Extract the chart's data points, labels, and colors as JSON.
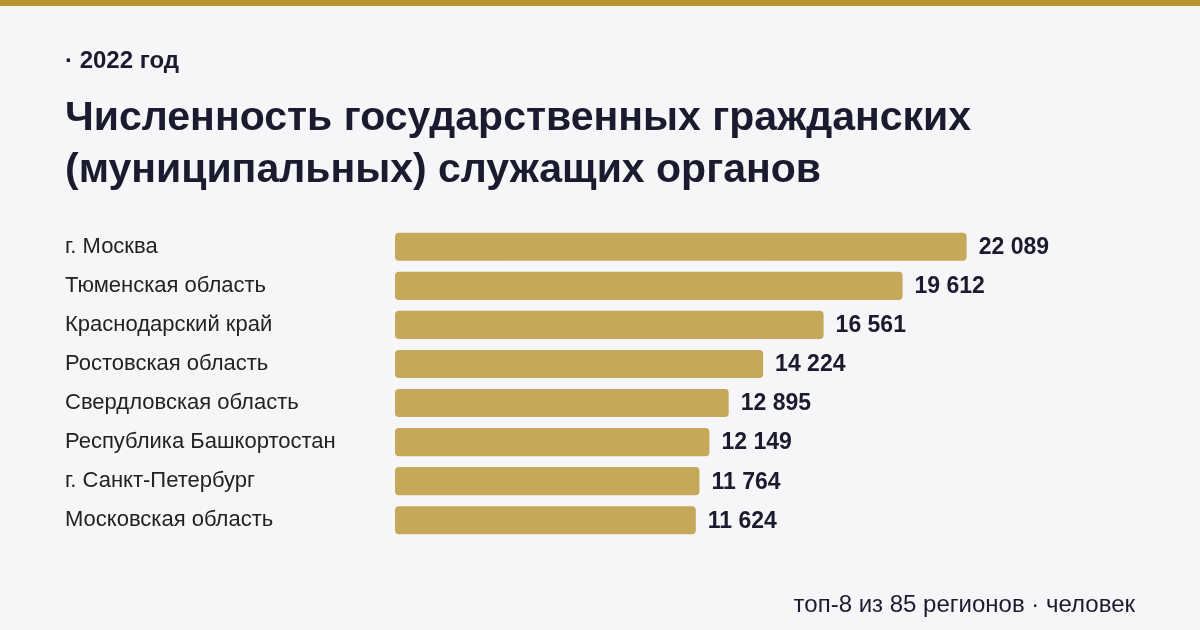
{
  "chart_data": {
    "type": "bar",
    "orientation": "horizontal",
    "subtitle": "· 2022 год",
    "title": "Численность государственных гражданских (муниципальных) служащих органов",
    "categories": [
      "г. Москва",
      "Тюменская область",
      "Краснодарский край",
      "Ростовская область",
      "Свердловская область",
      "Республика Башкортостан",
      "г. Санкт-Петербург",
      "Московская область"
    ],
    "values": [
      22089,
      19612,
      16561,
      14224,
      12895,
      12149,
      11764,
      11624
    ],
    "value_labels": [
      "22 089",
      "19 612",
      "16 561",
      "14 224",
      "12 895",
      "12 149",
      "11 764",
      "11 624"
    ],
    "color": "#c6a85b",
    "legend": false,
    "tick_labels": "y",
    "annotations": [
      "топ-8 из 85 регионов · человек"
    ]
  }
}
